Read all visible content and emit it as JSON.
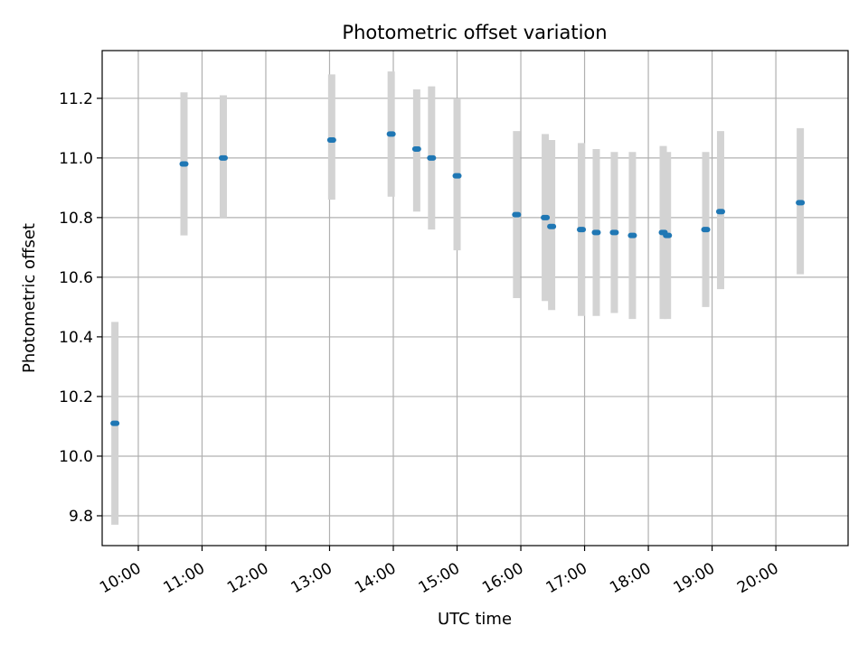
{
  "chart_data": {
    "type": "scatter",
    "title": "Photometric offset variation",
    "xlabel": "UTC time",
    "ylabel": "Photometric offset",
    "x_ticks": [
      "10:00",
      "11:00",
      "12:00",
      "13:00",
      "14:00",
      "15:00",
      "16:00",
      "17:00",
      "18:00",
      "19:00",
      "20:00"
    ],
    "y_ticks": [
      "9.8",
      "10.0",
      "10.2",
      "10.4",
      "10.6",
      "10.8",
      "11.0",
      "11.2"
    ],
    "xlim": [
      "09:26",
      "21:08"
    ],
    "ylim": [
      9.7,
      11.36
    ],
    "grid": true,
    "point_color": "#1f77b4",
    "errorbar_color": "#d3d3d3",
    "points": [
      {
        "x": "09:38",
        "y": 10.11,
        "ylow": 9.77,
        "yhigh": 10.45
      },
      {
        "x": "10:43",
        "y": 10.98,
        "ylow": 10.74,
        "yhigh": 11.22
      },
      {
        "x": "11:20",
        "y": 11.0,
        "ylow": 10.8,
        "yhigh": 11.21
      },
      {
        "x": "13:02",
        "y": 11.06,
        "ylow": 10.86,
        "yhigh": 11.28
      },
      {
        "x": "13:58",
        "y": 11.08,
        "ylow": 10.87,
        "yhigh": 11.29
      },
      {
        "x": "14:22",
        "y": 11.03,
        "ylow": 10.82,
        "yhigh": 11.23
      },
      {
        "x": "14:36",
        "y": 11.0,
        "ylow": 10.76,
        "yhigh": 11.24
      },
      {
        "x": "15:00",
        "y": 10.94,
        "ylow": 10.69,
        "yhigh": 11.2
      },
      {
        "x": "15:56",
        "y": 10.81,
        "ylow": 10.53,
        "yhigh": 11.09
      },
      {
        "x": "16:23",
        "y": 10.8,
        "ylow": 10.52,
        "yhigh": 11.08
      },
      {
        "x": "16:29",
        "y": 10.77,
        "ylow": 10.49,
        "yhigh": 11.06
      },
      {
        "x": "16:57",
        "y": 10.76,
        "ylow": 10.47,
        "yhigh": 11.05
      },
      {
        "x": "17:11",
        "y": 10.75,
        "ylow": 10.47,
        "yhigh": 11.03
      },
      {
        "x": "17:28",
        "y": 10.75,
        "ylow": 10.48,
        "yhigh": 11.02
      },
      {
        "x": "17:45",
        "y": 10.74,
        "ylow": 10.46,
        "yhigh": 11.02
      },
      {
        "x": "18:14",
        "y": 10.75,
        "ylow": 10.46,
        "yhigh": 11.04
      },
      {
        "x": "18:18",
        "y": 10.74,
        "ylow": 10.46,
        "yhigh": 11.02
      },
      {
        "x": "18:54",
        "y": 10.76,
        "ylow": 10.5,
        "yhigh": 11.02
      },
      {
        "x": "19:08",
        "y": 10.82,
        "ylow": 10.56,
        "yhigh": 11.09
      },
      {
        "x": "20:23",
        "y": 10.85,
        "ylow": 10.61,
        "yhigh": 11.1
      }
    ]
  }
}
